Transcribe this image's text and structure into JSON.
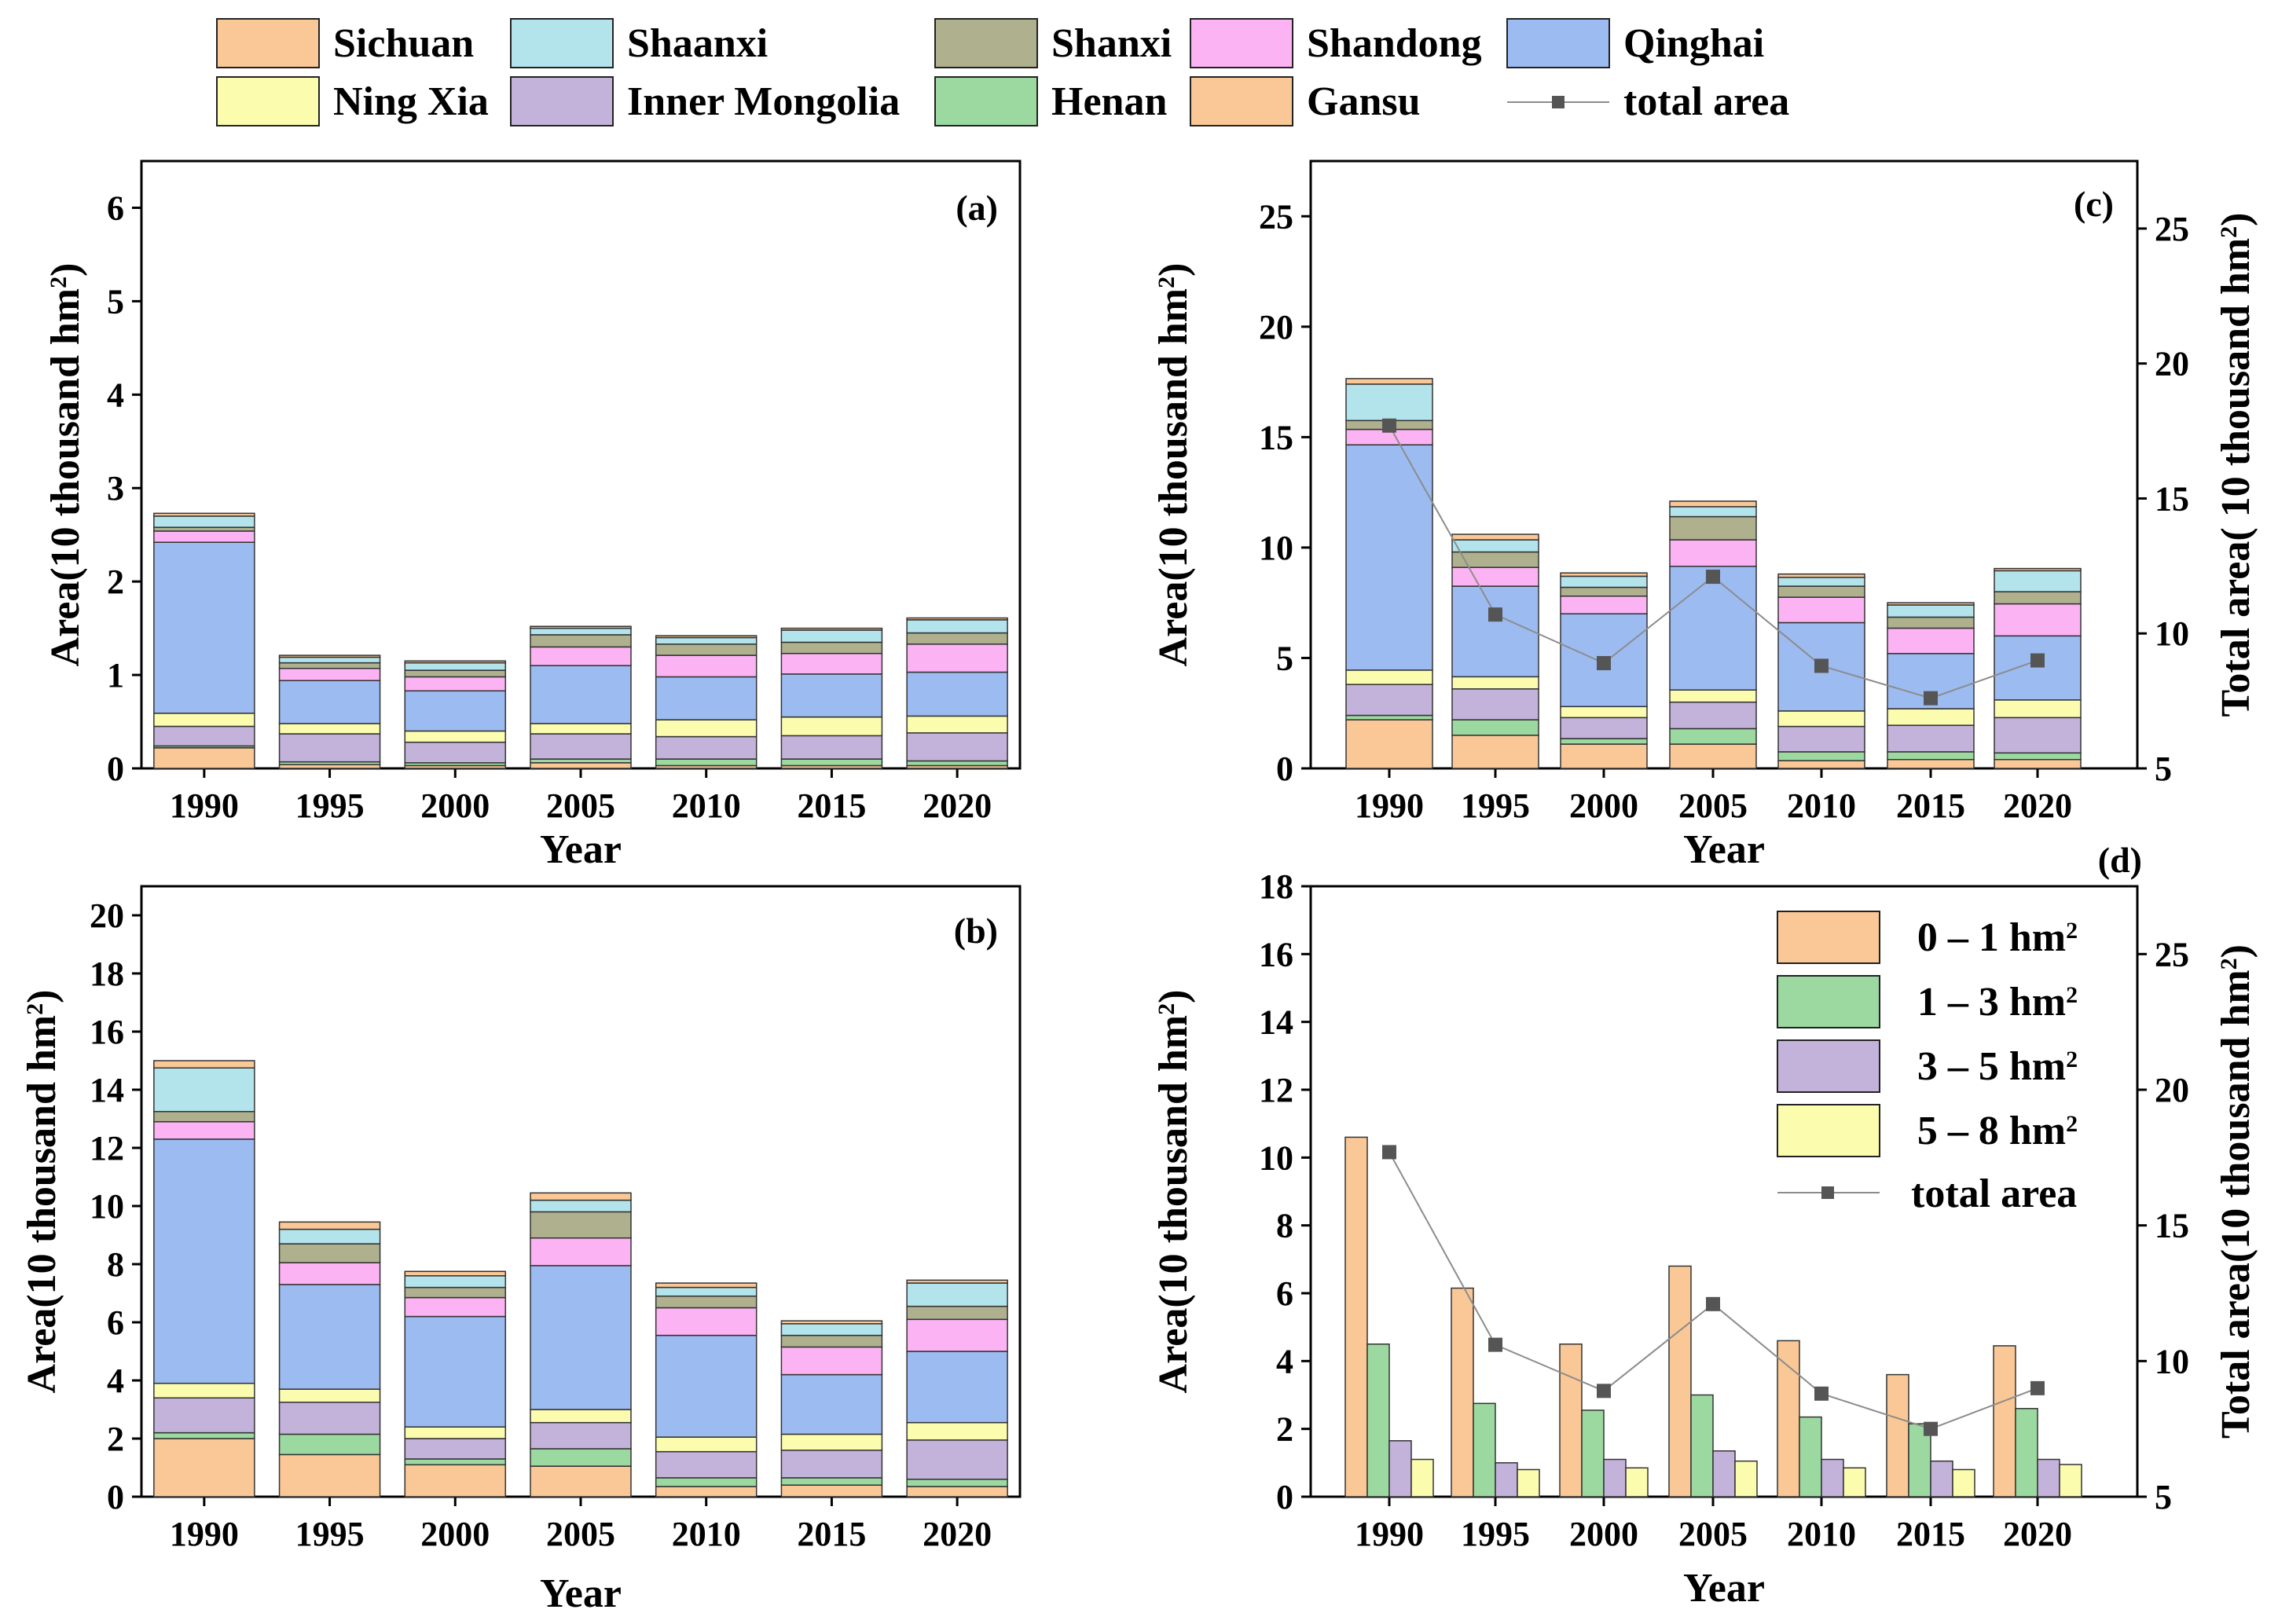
{
  "colors": {
    "Sichuan": "#FAC896",
    "Shaanxi": "#B3E4EC",
    "Shanxi": "#AEB08E",
    "Shandong": "#FBB3F4",
    "Qinghai": "#9CBBF1",
    "Ning Xia": "#FCFCAE",
    "Inner Mongolia": "#C3B2DA",
    "Henan": "#9CD9A0",
    "Gansu": "#FAC896",
    "line": "#8C8C8C",
    "marker": "#555555"
  },
  "legend": {
    "items": [
      "Sichuan",
      "Shaanxi",
      "Shanxi",
      "Shandong",
      "Qinghai",
      "Ning Xia",
      "Inner Mongolia",
      "Henan",
      "Gansu"
    ],
    "line_label": "total area"
  },
  "chart_data": [
    {
      "id": "a",
      "panel_label": "(a)",
      "type": "bar",
      "stacked": true,
      "xlabel": "Year",
      "ylabel": "Area(10 thousand hm²)",
      "ylim": [
        0,
        6.5
      ],
      "yticks": [
        "0",
        "1",
        "2",
        "3",
        "4",
        "5",
        "6"
      ],
      "categories": [
        "1990",
        "1995",
        "2000",
        "2005",
        "2010",
        "2015",
        "2020"
      ],
      "series": [
        {
          "name": "Gansu",
          "values": [
            0.22,
            0.04,
            0.03,
            0.06,
            0.03,
            0.03,
            0.03
          ]
        },
        {
          "name": "Henan",
          "values": [
            0.02,
            0.03,
            0.03,
            0.04,
            0.07,
            0.07,
            0.05
          ]
        },
        {
          "name": "Inner Mongolia",
          "values": [
            0.21,
            0.3,
            0.22,
            0.27,
            0.24,
            0.25,
            0.3
          ]
        },
        {
          "name": "Ning Xia",
          "values": [
            0.14,
            0.11,
            0.12,
            0.11,
            0.18,
            0.2,
            0.18
          ]
        },
        {
          "name": "Qinghai",
          "values": [
            1.83,
            0.46,
            0.43,
            0.62,
            0.46,
            0.46,
            0.47
          ]
        },
        {
          "name": "Shandong",
          "values": [
            0.12,
            0.13,
            0.15,
            0.2,
            0.23,
            0.22,
            0.3
          ]
        },
        {
          "name": "Shanxi",
          "values": [
            0.04,
            0.06,
            0.07,
            0.13,
            0.12,
            0.12,
            0.12
          ]
        },
        {
          "name": "Shaanxi",
          "values": [
            0.12,
            0.06,
            0.08,
            0.07,
            0.07,
            0.13,
            0.14
          ]
        },
        {
          "name": "Sichuan",
          "values": [
            0.03,
            0.02,
            0.02,
            0.02,
            0.02,
            0.02,
            0.02
          ]
        }
      ]
    },
    {
      "id": "b",
      "panel_label": "(b)",
      "type": "bar",
      "stacked": true,
      "xlabel": "Year",
      "ylabel": "Area(10 thousand hm²)",
      "ylim": [
        0,
        21
      ],
      "yticks": [
        "0",
        "2",
        "4",
        "6",
        "8",
        "10",
        "12",
        "14",
        "16",
        "18",
        "20"
      ],
      "categories": [
        "1990",
        "1995",
        "2000",
        "2005",
        "2010",
        "2015",
        "2020"
      ],
      "series": [
        {
          "name": "Gansu",
          "values": [
            2.0,
            1.45,
            1.1,
            1.05,
            0.35,
            0.4,
            0.35
          ]
        },
        {
          "name": "Henan",
          "values": [
            0.2,
            0.7,
            0.2,
            0.6,
            0.3,
            0.25,
            0.25
          ]
        },
        {
          "name": "Inner Mongolia",
          "values": [
            1.2,
            1.1,
            0.7,
            0.9,
            0.9,
            0.95,
            1.35
          ]
        },
        {
          "name": "Ning Xia",
          "values": [
            0.5,
            0.45,
            0.4,
            0.45,
            0.5,
            0.55,
            0.6
          ]
        },
        {
          "name": "Qinghai",
          "values": [
            8.4,
            3.6,
            3.8,
            4.95,
            3.5,
            2.05,
            2.45
          ]
        },
        {
          "name": "Shandong",
          "values": [
            0.6,
            0.75,
            0.65,
            0.95,
            0.95,
            0.95,
            1.1
          ]
        },
        {
          "name": "Shanxi",
          "values": [
            0.35,
            0.65,
            0.35,
            0.9,
            0.4,
            0.4,
            0.45
          ]
        },
        {
          "name": "Shaanxi",
          "values": [
            1.5,
            0.5,
            0.4,
            0.4,
            0.3,
            0.4,
            0.8
          ]
        },
        {
          "name": "Sichuan",
          "values": [
            0.25,
            0.25,
            0.15,
            0.25,
            0.15,
            0.1,
            0.1
          ]
        }
      ]
    },
    {
      "id": "c",
      "panel_label": "(c)",
      "type": "bar",
      "stacked": true,
      "xlabel": "Year",
      "ylabel": "Area(10 thousand hm²)",
      "y2label": "Total area( 10 thousand hm²)",
      "ylim": [
        0,
        27.5
      ],
      "yticks": [
        "0",
        "5",
        "10",
        "15",
        "20",
        "25"
      ],
      "y2lim": [
        5,
        27.5
      ],
      "y2ticks": [
        "5",
        "10",
        "15",
        "20",
        "25"
      ],
      "categories": [
        "1990",
        "1995",
        "2000",
        "2005",
        "2010",
        "2015",
        "2020"
      ],
      "series": [
        {
          "name": "Gansu",
          "values": [
            2.2,
            1.5,
            1.1,
            1.1,
            0.35,
            0.4,
            0.4
          ]
        },
        {
          "name": "Henan",
          "values": [
            0.2,
            0.7,
            0.25,
            0.7,
            0.4,
            0.35,
            0.3
          ]
        },
        {
          "name": "Inner Mongolia",
          "values": [
            1.4,
            1.4,
            0.95,
            1.2,
            1.15,
            1.2,
            1.6
          ]
        },
        {
          "name": "Ning Xia",
          "values": [
            0.65,
            0.55,
            0.5,
            0.55,
            0.7,
            0.75,
            0.8
          ]
        },
        {
          "name": "Qinghai",
          "values": [
            10.2,
            4.1,
            4.2,
            5.6,
            4.0,
            2.5,
            2.9
          ]
        },
        {
          "name": "Shandong",
          "values": [
            0.7,
            0.85,
            0.8,
            1.2,
            1.15,
            1.15,
            1.45
          ]
        },
        {
          "name": "Shanxi",
          "values": [
            0.4,
            0.7,
            0.4,
            1.05,
            0.5,
            0.5,
            0.55
          ]
        },
        {
          "name": "Shaanxi",
          "values": [
            1.65,
            0.55,
            0.5,
            0.45,
            0.4,
            0.55,
            0.95
          ]
        },
        {
          "name": "Sichuan",
          "values": [
            0.25,
            0.25,
            0.15,
            0.25,
            0.15,
            0.1,
            0.1
          ]
        }
      ],
      "line": {
        "name": "total area",
        "axis": "right",
        "values": [
          17.7,
          10.7,
          8.9,
          12.1,
          8.8,
          7.6,
          9.0
        ]
      }
    },
    {
      "id": "d",
      "panel_label": "(d)",
      "type": "bar",
      "stacked": false,
      "xlabel": "Year",
      "ylabel": "Area(10 thousand hm²)",
      "y2label": "Total area(10 thousand hm²)",
      "ylim": [
        0,
        18
      ],
      "yticks": [
        "0",
        "2",
        "4",
        "6",
        "8",
        "10",
        "12",
        "14",
        "16",
        "18"
      ],
      "y2lim": [
        5,
        27.5
      ],
      "y2ticks": [
        "5",
        "10",
        "15",
        "20",
        "25"
      ],
      "categories": [
        "1990",
        "1995",
        "2000",
        "2005",
        "2010",
        "2015",
        "2020"
      ],
      "series": [
        {
          "name": "0 – 1 hm²",
          "color": "#FAC896",
          "values": [
            10.6,
            6.15,
            4.5,
            6.8,
            4.6,
            3.6,
            4.45
          ]
        },
        {
          "name": "1 – 3 hm²",
          "color": "#9CD9A0",
          "values": [
            4.5,
            2.75,
            2.55,
            3.0,
            2.35,
            2.15,
            2.6
          ]
        },
        {
          "name": "3 – 5 hm²",
          "color": "#C3B2DA",
          "values": [
            1.65,
            1.0,
            1.1,
            1.35,
            1.1,
            1.05,
            1.1
          ]
        },
        {
          "name": "5 – 8 hm²",
          "color": "#FCFCAE",
          "values": [
            1.1,
            0.8,
            0.85,
            1.05,
            0.85,
            0.8,
            0.95
          ]
        }
      ],
      "line": {
        "name": "total area",
        "axis": "right",
        "values": [
          17.7,
          10.6,
          8.9,
          12.1,
          8.8,
          7.5,
          9.0
        ]
      }
    }
  ]
}
